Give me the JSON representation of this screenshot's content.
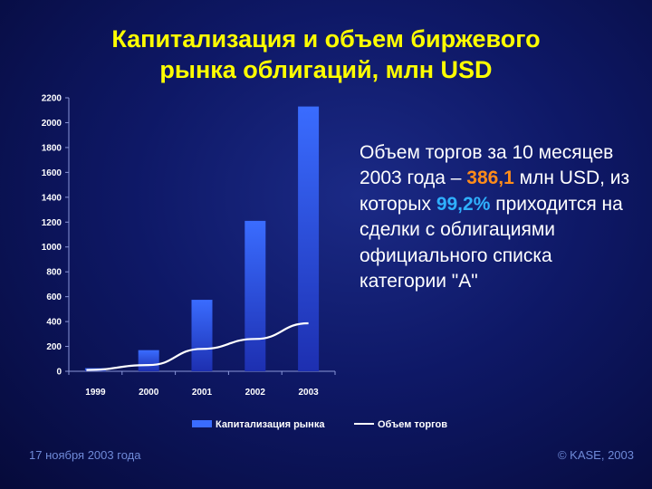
{
  "title": {
    "line1": "Капитализация и объем биржевого",
    "line2": "рынка облигаций, млн USD"
  },
  "note": {
    "part1": "Объем торгов за 10 месяцев 2003 года –",
    "value1": "386,1",
    "part2": "млн USD, из которых",
    "value2": "99,2%",
    "part3": "приходится на сделки с облигациями официального списка категории \"А\""
  },
  "footer": {
    "date": "17 ноября 2003 года",
    "copyright": "© KASE, 2003"
  },
  "colors": {
    "title": "#ffff00",
    "bar": "#3a6cff",
    "line": "#ffffff",
    "highlight_orange": "#ff8c1a",
    "highlight_cyan": "#2fb0ff"
  },
  "chart_data": {
    "type": "bar",
    "categories": [
      "1999",
      "2000",
      "2001",
      "2002",
      "2003"
    ],
    "series": [
      {
        "name": "Капитализация рынка",
        "type": "bar",
        "values": [
          25,
          170,
          575,
          1210,
          2130
        ]
      },
      {
        "name": "Объем торгов",
        "type": "line",
        "values": [
          10,
          50,
          180,
          260,
          386.1
        ]
      }
    ],
    "yticks": [
      0,
      200,
      400,
      600,
      800,
      1000,
      1200,
      1400,
      1600,
      1800,
      2000,
      2200
    ],
    "ylim": [
      0,
      2200
    ],
    "grid": false,
    "legend": "bottom"
  }
}
